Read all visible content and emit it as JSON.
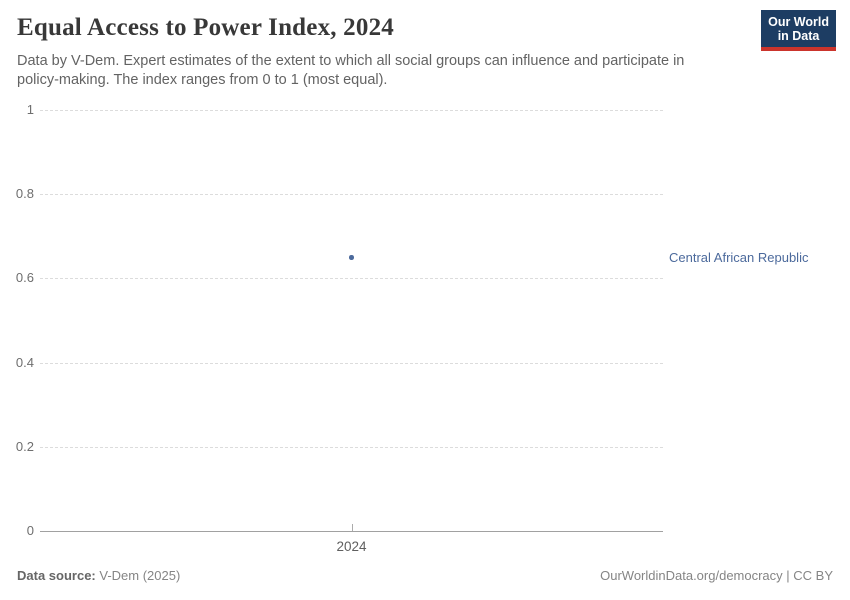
{
  "header": {
    "title": "Equal Access to Power Index, 2024",
    "subtitle_line1": "Data by V-Dem. Expert estimates of the extent to which all social groups can influence and participate in",
    "subtitle_line2": "policy-making. The index ranges from 0 to 1 (most equal)."
  },
  "logo": {
    "line1": "Our World",
    "line2": "in Data",
    "bg_color": "#1d3d63",
    "accent_color": "#cb342c"
  },
  "chart_data": {
    "type": "scatter",
    "title": "Equal Access to Power Index, 2024",
    "x": [
      2024
    ],
    "series": [
      {
        "name": "Central African Republic",
        "values": [
          0.65
        ],
        "color": "#4c6a9c"
      }
    ],
    "xlabel": "",
    "ylabel": "",
    "ylim": [
      0,
      1
    ],
    "yticks": [
      0,
      0.2,
      0.4,
      0.6,
      0.8,
      1
    ],
    "xticks": [
      "2024"
    ],
    "grid": "horizontal-dashed",
    "legend_position": "right-of-point"
  },
  "footer": {
    "source_label": "Data source:",
    "source_value": " V-Dem (2025)",
    "right_text": "OurWorldinData.org/democracy | CC BY"
  }
}
